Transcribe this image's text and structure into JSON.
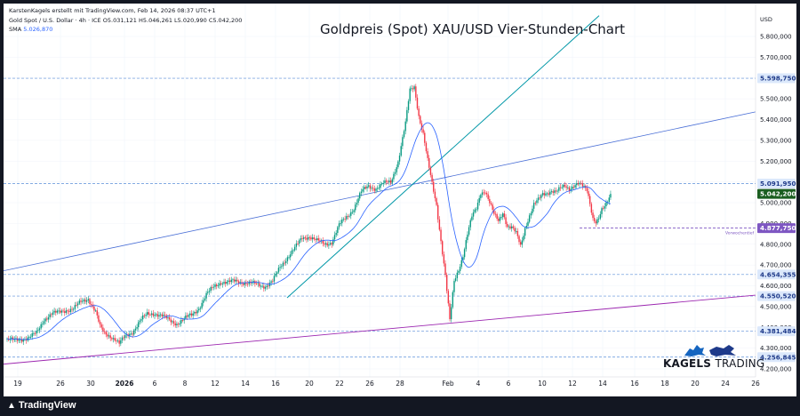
{
  "header": {
    "credit": "KarstenKagels erstellt mit TradingView.com, Feb 14, 2026 08:37 UTC+1",
    "symbol": "Gold Spot / U.S. Dollar · 4h · ICE",
    "ohlc": "O5.031,121  H5.046,261  L5.020,990  C5.042,200",
    "sma_label": "SMA",
    "sma_value": "5.026,870"
  },
  "title": "Goldpreis (Spot) XAU/USD Vier-Stunden-Chart",
  "currency": "USD",
  "brand": {
    "name1": "KAGELS",
    "name2": "TRADING"
  },
  "footer": {
    "logo": "TradingView"
  },
  "annotation": "Vorwochentief",
  "colors": {
    "up": "#089981",
    "down": "#f23645",
    "sma": "#2962ff",
    "upper_trend": "#4a6fd6",
    "steep_trend": "#0097a7",
    "lower_trend": "#9c27b0",
    "level": "#5b8fd9",
    "last_price": "#1b5e20",
    "prev_low": "#7e57c2",
    "tag": "#1e3a8a"
  },
  "chart_data": {
    "type": "candlestick",
    "title": "Goldpreis (Spot) XAU/USD Vier-Stunden-Chart",
    "y_axis_ticks": [
      "5.800,000",
      "5.700,000",
      "5.600,000",
      "5.500,000",
      "5.400,000",
      "5.300,000",
      "5.200,000",
      "5.100,000",
      "5.000,000",
      "4.900,000",
      "4.800,000",
      "4.700,000",
      "4.600,000",
      "4.500,000",
      "4.400,000",
      "4.300,000",
      "4.200,000"
    ],
    "ylim": [
      4200,
      5820
    ],
    "x_axis_ticks": [
      "19",
      "26",
      "30",
      "2026",
      "6",
      "8",
      "12",
      "14",
      "16",
      "20",
      "22",
      "26",
      "28",
      "Feb",
      "4",
      "6",
      "10",
      "12",
      "14",
      "16",
      "18",
      "20",
      "24",
      "26"
    ],
    "horizontal_levels": [
      {
        "label": "5.598,750",
        "value": 5598.75
      },
      {
        "label": "5.091,950",
        "value": 5091.95
      },
      {
        "label": "4.654,355",
        "value": 4654.355
      },
      {
        "label": "4.550,520",
        "value": 4550.52
      },
      {
        "label": "4.381,484",
        "value": 4381.484
      },
      {
        "label": "4.256,845",
        "value": 4256.845
      }
    ],
    "last_price": {
      "label": "5.042,200",
      "value": 5042.2
    },
    "prev_week_low": {
      "label": "4.877,750",
      "value": 4877.75,
      "note": "Vorwochentief"
    },
    "close_path": [
      [
        0,
        4340
      ],
      [
        5,
        4335
      ],
      [
        10,
        4345
      ],
      [
        15,
        4352
      ],
      [
        20,
        4370
      ],
      [
        25,
        4440
      ],
      [
        30,
        4465
      ],
      [
        35,
        4470
      ],
      [
        40,
        4485
      ],
      [
        45,
        4490
      ],
      [
        50,
        4520
      ],
      [
        55,
        4540
      ],
      [
        60,
        4475
      ],
      [
        63,
        4400
      ],
      [
        66,
        4370
      ],
      [
        70,
        4360
      ],
      [
        73,
        4345
      ],
      [
        76,
        4320
      ],
      [
        80,
        4355
      ],
      [
        85,
        4380
      ],
      [
        90,
        4430
      ],
      [
        95,
        4462
      ],
      [
        100,
        4470
      ],
      [
        105,
        4455
      ],
      [
        110,
        4432
      ],
      [
        115,
        4420
      ],
      [
        120,
        4440
      ],
      [
        125,
        4458
      ],
      [
        130,
        4495
      ],
      [
        135,
        4555
      ],
      [
        140,
        4595
      ],
      [
        145,
        4620
      ],
      [
        150,
        4615
      ],
      [
        155,
        4622
      ],
      [
        160,
        4618
      ],
      [
        165,
        4610
      ],
      [
        170,
        4605
      ],
      [
        175,
        4600
      ],
      [
        180,
        4620
      ],
      [
        185,
        4690
      ],
      [
        190,
        4740
      ],
      [
        195,
        4780
      ],
      [
        200,
        4830
      ],
      [
        205,
        4840
      ],
      [
        210,
        4815
      ],
      [
        215,
        4800
      ],
      [
        220,
        4812
      ],
      [
        225,
        4890
      ],
      [
        230,
        4930
      ],
      [
        235,
        4975
      ],
      [
        240,
        5050
      ],
      [
        245,
        5080
      ],
      [
        250,
        5070
      ],
      [
        255,
        5090
      ],
      [
        260,
        5100
      ],
      [
        265,
        5200
      ],
      [
        270,
        5380
      ],
      [
        273,
        5540
      ],
      [
        276,
        5560
      ],
      [
        279,
        5420
      ],
      [
        282,
        5330
      ],
      [
        285,
        5200
      ],
      [
        288,
        5090
      ],
      [
        291,
        4990
      ],
      [
        294,
        4820
      ],
      [
        297,
        4650
      ],
      [
        300,
        4430
      ],
      [
        303,
        4620
      ],
      [
        306,
        4680
      ],
      [
        309,
        4750
      ],
      [
        312,
        4850
      ],
      [
        315,
        4930
      ],
      [
        318,
        4970
      ],
      [
        321,
        5050
      ],
      [
        324,
        5060
      ],
      [
        327,
        5000
      ],
      [
        330,
        4940
      ],
      [
        333,
        4910
      ],
      [
        336,
        4955
      ],
      [
        339,
        4890
      ],
      [
        342,
        4880
      ],
      [
        345,
        4850
      ],
      [
        348,
        4790
      ],
      [
        351,
        4880
      ],
      [
        354,
        4940
      ],
      [
        357,
        4990
      ],
      [
        360,
        5010
      ],
      [
        363,
        5040
      ],
      [
        366,
        5050
      ],
      [
        369,
        5060
      ],
      [
        372,
        5050
      ],
      [
        375,
        5065
      ],
      [
        378,
        5080
      ],
      [
        381,
        5070
      ],
      [
        384,
        5085
      ],
      [
        387,
        5090
      ],
      [
        390,
        5075
      ],
      [
        393,
        5060
      ],
      [
        395,
        5000
      ],
      [
        397,
        4930
      ],
      [
        399,
        4910
      ],
      [
        401,
        4925
      ],
      [
        403,
        4960
      ],
      [
        405,
        4975
      ],
      [
        407,
        5005
      ],
      [
        409,
        5042
      ]
    ]
  }
}
